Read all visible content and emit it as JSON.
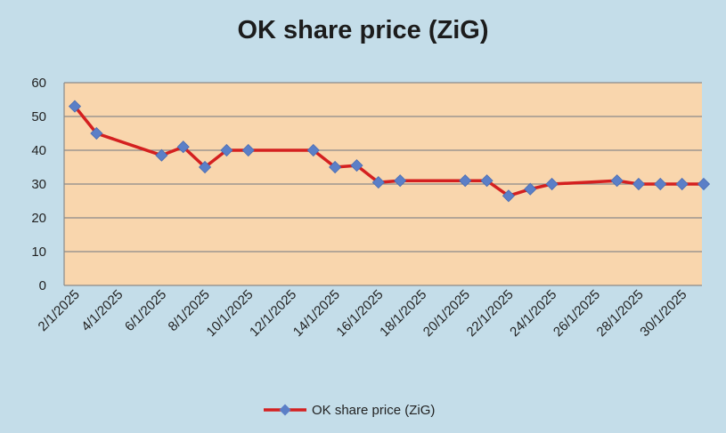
{
  "chart_data": {
    "type": "line",
    "title": "OK share price (ZiG)",
    "xlabel": "",
    "ylabel": "",
    "ylim": [
      0,
      60
    ],
    "yticks": [
      "0",
      "10",
      "20",
      "30",
      "40",
      "50",
      "60"
    ],
    "x_tick_labels": [
      "2/1/2025",
      "4/1/2025",
      "6/1/2025",
      "8/1/2025",
      "10/1/2025",
      "12/1/2025",
      "14/1/2025",
      "16/1/2025",
      "18/1/2025",
      "20/1/2025",
      "22/1/2025",
      "24/1/2025",
      "26/1/2025",
      "28/1/2025",
      "30/1/2025"
    ],
    "x_range_days": [
      2,
      31
    ],
    "grid": "horizontal",
    "legend_position": "bottom",
    "colors": {
      "plot_background": "#f9d6ad",
      "chart_background": "#c4dde9",
      "line": "#d42020",
      "marker": "#5b7fc7",
      "grid": "#8a8a8a"
    },
    "series": [
      {
        "name": "OK share price (ZiG)",
        "points": [
          {
            "date": "2/1/2025",
            "value": 53
          },
          {
            "date": "3/1/2025",
            "value": 45
          },
          {
            "date": "6/1/2025",
            "value": 38.5
          },
          {
            "date": "7/1/2025",
            "value": 41
          },
          {
            "date": "8/1/2025",
            "value": 35
          },
          {
            "date": "9/1/2025",
            "value": 40
          },
          {
            "date": "10/1/2025",
            "value": 40
          },
          {
            "date": "13/1/2025",
            "value": 40
          },
          {
            "date": "14/1/2025",
            "value": 35
          },
          {
            "date": "15/1/2025",
            "value": 35.5
          },
          {
            "date": "16/1/2025",
            "value": 30.5
          },
          {
            "date": "17/1/2025",
            "value": 31
          },
          {
            "date": "20/1/2025",
            "value": 31
          },
          {
            "date": "21/1/2025",
            "value": 31
          },
          {
            "date": "22/1/2025",
            "value": 26.5
          },
          {
            "date": "23/1/2025",
            "value": 28.5
          },
          {
            "date": "24/1/2025",
            "value": 30
          },
          {
            "date": "27/1/2025",
            "value": 31
          },
          {
            "date": "28/1/2025",
            "value": 30
          },
          {
            "date": "29/1/2025",
            "value": 30
          },
          {
            "date": "30/1/2025",
            "value": 30
          },
          {
            "date": "31/1/2025",
            "value": 30
          }
        ]
      }
    ]
  }
}
